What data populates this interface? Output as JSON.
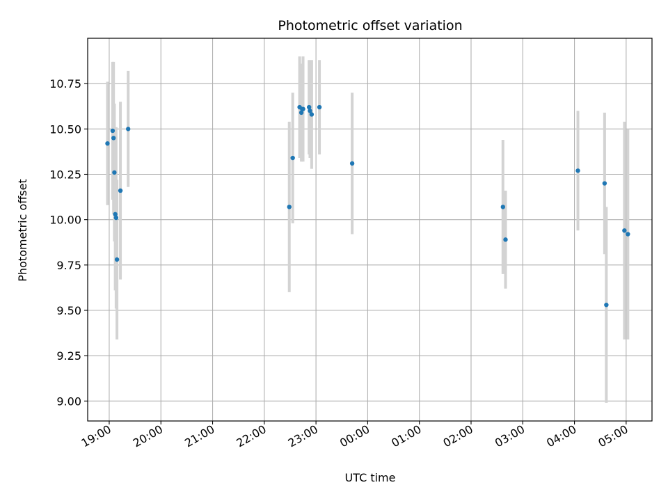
{
  "chart_data": {
    "type": "scatter",
    "title": "Photometric offset variation",
    "xlabel": "UTC time",
    "ylabel": "Photometric offset",
    "x_ticks": [
      "19:00",
      "20:00",
      "21:00",
      "22:00",
      "23:00",
      "00:00",
      "01:00",
      "02:00",
      "03:00",
      "04:00",
      "05:00"
    ],
    "y_ticks": [
      "9.00",
      "9.25",
      "9.50",
      "9.75",
      "10.00",
      "10.25",
      "10.50",
      "10.75"
    ],
    "xlim": [
      "18:35",
      "05:30"
    ],
    "ylim": [
      8.89,
      11.0
    ],
    "grid": true,
    "marker_color": "#1f77b4",
    "errorbar_color": "#d3d3d3",
    "points": [
      {
        "t": "18:58",
        "y": 10.42,
        "err": 0.34
      },
      {
        "t": "19:04",
        "y": 10.49,
        "err": 0.38
      },
      {
        "t": "19:05",
        "y": 10.45,
        "err": 0.42
      },
      {
        "t": "19:06",
        "y": 10.26,
        "err": 0.38
      },
      {
        "t": "19:07",
        "y": 10.03,
        "err": 0.42
      },
      {
        "t": "19:08",
        "y": 10.01,
        "err": 0.5
      },
      {
        "t": "19:09",
        "y": 9.78,
        "err": 0.44
      },
      {
        "t": "19:13",
        "y": 10.16,
        "err": 0.49
      },
      {
        "t": "19:22",
        "y": 10.5,
        "err": 0.32
      },
      {
        "t": "22:29",
        "y": 10.07,
        "err": 0.47
      },
      {
        "t": "22:33",
        "y": 10.34,
        "err": 0.36
      },
      {
        "t": "22:41",
        "y": 10.62,
        "err": 0.28
      },
      {
        "t": "22:43",
        "y": 10.59,
        "err": 0.27
      },
      {
        "t": "22:44",
        "y": 10.61,
        "err": 0.25
      },
      {
        "t": "22:45",
        "y": 10.61,
        "err": 0.29
      },
      {
        "t": "22:52",
        "y": 10.62,
        "err": 0.26
      },
      {
        "t": "22:53",
        "y": 10.6,
        "err": 0.26
      },
      {
        "t": "22:55",
        "y": 10.58,
        "err": 0.3
      },
      {
        "t": "23:04",
        "y": 10.62,
        "err": 0.26
      },
      {
        "t": "23:42",
        "y": 10.31,
        "err": 0.39
      },
      {
        "t": "02:37",
        "y": 10.07,
        "err": 0.37
      },
      {
        "t": "02:40",
        "y": 9.89,
        "err": 0.27
      },
      {
        "t": "04:04",
        "y": 10.27,
        "err": 0.33
      },
      {
        "t": "04:35",
        "y": 10.2,
        "err": 0.39
      },
      {
        "t": "04:37",
        "y": 9.53,
        "err": 0.54
      },
      {
        "t": "04:58",
        "y": 9.94,
        "err": 0.6
      },
      {
        "t": "05:02",
        "y": 9.92,
        "err": 0.58
      }
    ]
  }
}
